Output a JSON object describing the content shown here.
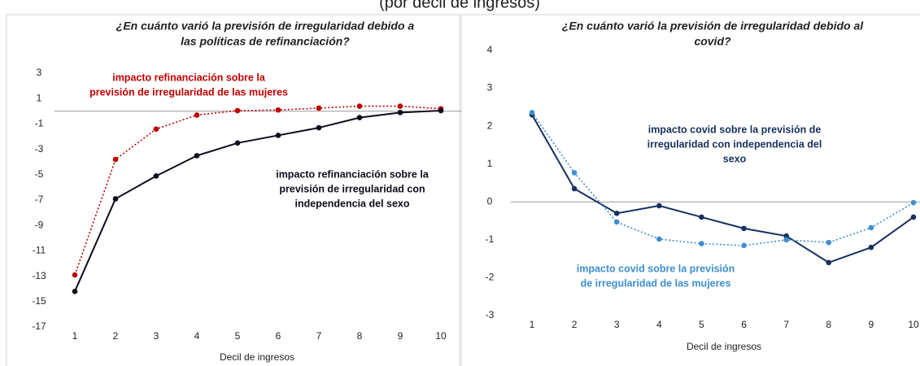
{
  "subtitle": "(por decil de ingresos)",
  "chart_data": [
    {
      "type": "line",
      "title": [
        "¿En cuánto varió la previsión de irregularidad debido a",
        "las políticas de refinanciación?"
      ],
      "xlabel": "Decil de ingresos",
      "x": [
        1,
        2,
        3,
        4,
        5,
        6,
        7,
        8,
        9,
        10
      ],
      "ylim": [
        -17,
        3
      ],
      "yticks": [
        3,
        1,
        -1,
        -3,
        -5,
        -7,
        -9,
        -11,
        -13,
        -15,
        -17
      ],
      "series": [
        {
          "name": [
            "impacto refinanciación sobre la",
            "previsión de irregularidad de las mujeres"
          ],
          "color": "#c00000",
          "dash": "dotted",
          "values": [
            -12.9,
            -3.8,
            -1.4,
            -0.3,
            0.05,
            0.1,
            0.25,
            0.4,
            0.4,
            0.2
          ]
        },
        {
          "name": [
            "impacto refinanciación sobre la",
            "previsión de irregularidad con",
            "independencia del sexo"
          ],
          "color": "#0d0d1a",
          "dash": "solid",
          "values": [
            -14.2,
            -6.9,
            -5.1,
            -3.5,
            -2.5,
            -1.9,
            -1.3,
            -0.5,
            -0.1,
            0.05
          ]
        }
      ]
    },
    {
      "type": "line",
      "title": [
        "¿En cuánto varió la previsión de irregularidad debido al",
        "covid?"
      ],
      "xlabel": "Decil de ingresos",
      "x": [
        1,
        2,
        3,
        4,
        5,
        6,
        7,
        8,
        9,
        10
      ],
      "ylim": [
        -3,
        4
      ],
      "yticks": [
        4,
        3,
        2,
        1,
        0,
        -1,
        -2,
        -3
      ],
      "series": [
        {
          "name": [
            "impacto covid sobre la previsión de",
            "irregularidad con independencia del",
            "sexo"
          ],
          "color": "#17305e",
          "dash": "solid",
          "values": [
            2.3,
            0.35,
            -0.3,
            -0.1,
            -0.4,
            -0.7,
            -0.9,
            -1.6,
            -1.2,
            -0.4
          ]
        },
        {
          "name": [
            "impacto covid sobre la previsión",
            "de irregularidad de las mujeres"
          ],
          "color": "#3f8fcf",
          "dash": "dotted",
          "values": [
            2.36,
            0.77,
            -0.53,
            -0.98,
            -1.1,
            -1.15,
            -1.0,
            -1.07,
            -0.68,
            -0.02
          ]
        }
      ]
    }
  ]
}
